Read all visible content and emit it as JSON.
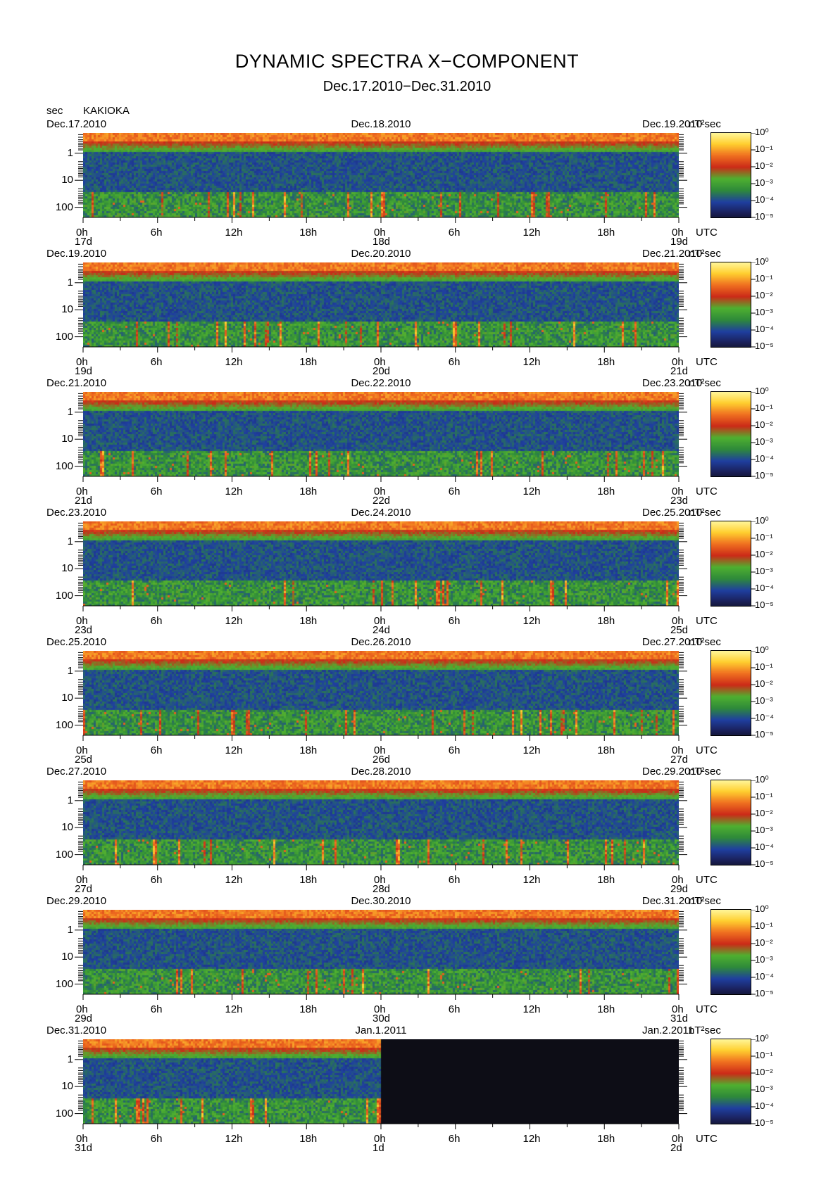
{
  "header": {
    "title": "DYNAMIC SPECTRA X−COMPONENT",
    "subtitle": "Dec.17.2010−Dec.31.2010",
    "y_unit": "sec",
    "station": "KAKIOKA"
  },
  "chart_data": {
    "type": "heatmap",
    "x_tick_labels": [
      "0h",
      "6h",
      "12h",
      "18h",
      "0h",
      "6h",
      "12h",
      "18h",
      "0h"
    ],
    "x_unit": "UTC",
    "y_tick_labels": [
      "1",
      "10",
      "100"
    ],
    "y_axis_inverted": true,
    "colorbar_unit": "nT²sec",
    "colorbar_labels": [
      "10⁰",
      "10⁻¹",
      "10⁻²",
      "10⁻³",
      "10⁻⁴",
      "10⁻⁵"
    ],
    "colorscale": [
      "#0a0a0a",
      "#1a1f55",
      "#1f3fa0",
      "#2f8a3a",
      "#4fb030",
      "#cc2a18",
      "#f07020",
      "#ffd030",
      "#fff8a0"
    ],
    "panels": [
      {
        "left_date": "Dec.17.2010",
        "mid_date": "Dec.18.2010",
        "right_date": "Dec.19.2010",
        "day_labels": [
          "17d",
          "18d",
          "19d"
        ],
        "data_end_fraction": 1.0
      },
      {
        "left_date": "Dec.19.2010",
        "mid_date": "Dec.20.2010",
        "right_date": "Dec.21.2010",
        "day_labels": [
          "19d",
          "20d",
          "21d"
        ],
        "data_end_fraction": 1.0
      },
      {
        "left_date": "Dec.21.2010",
        "mid_date": "Dec.22.2010",
        "right_date": "Dec.23.2010",
        "day_labels": [
          "21d",
          "22d",
          "23d"
        ],
        "data_end_fraction": 1.0
      },
      {
        "left_date": "Dec.23.2010",
        "mid_date": "Dec.24.2010",
        "right_date": "Dec.25.2010",
        "day_labels": [
          "23d",
          "24d",
          "25d"
        ],
        "data_end_fraction": 1.0
      },
      {
        "left_date": "Dec.25.2010",
        "mid_date": "Dec.26.2010",
        "right_date": "Dec.27.2010",
        "day_labels": [
          "25d",
          "26d",
          "27d"
        ],
        "data_end_fraction": 1.0
      },
      {
        "left_date": "Dec.27.2010",
        "mid_date": "Dec.28.2010",
        "right_date": "Dec.29.2010",
        "day_labels": [
          "27d",
          "28d",
          "29d"
        ],
        "data_end_fraction": 1.0
      },
      {
        "left_date": "Dec.29.2010",
        "mid_date": "Dec.30.2010",
        "right_date": "Dec.31.2010",
        "day_labels": [
          "29d",
          "30d",
          "31d"
        ],
        "data_end_fraction": 1.0
      },
      {
        "left_date": "Dec.31.2010",
        "mid_date": "Jan.1.2011",
        "right_date": "Jan.2.2011",
        "day_labels": [
          "31d",
          "1d",
          "2d"
        ],
        "data_end_fraction": 0.5
      }
    ]
  }
}
